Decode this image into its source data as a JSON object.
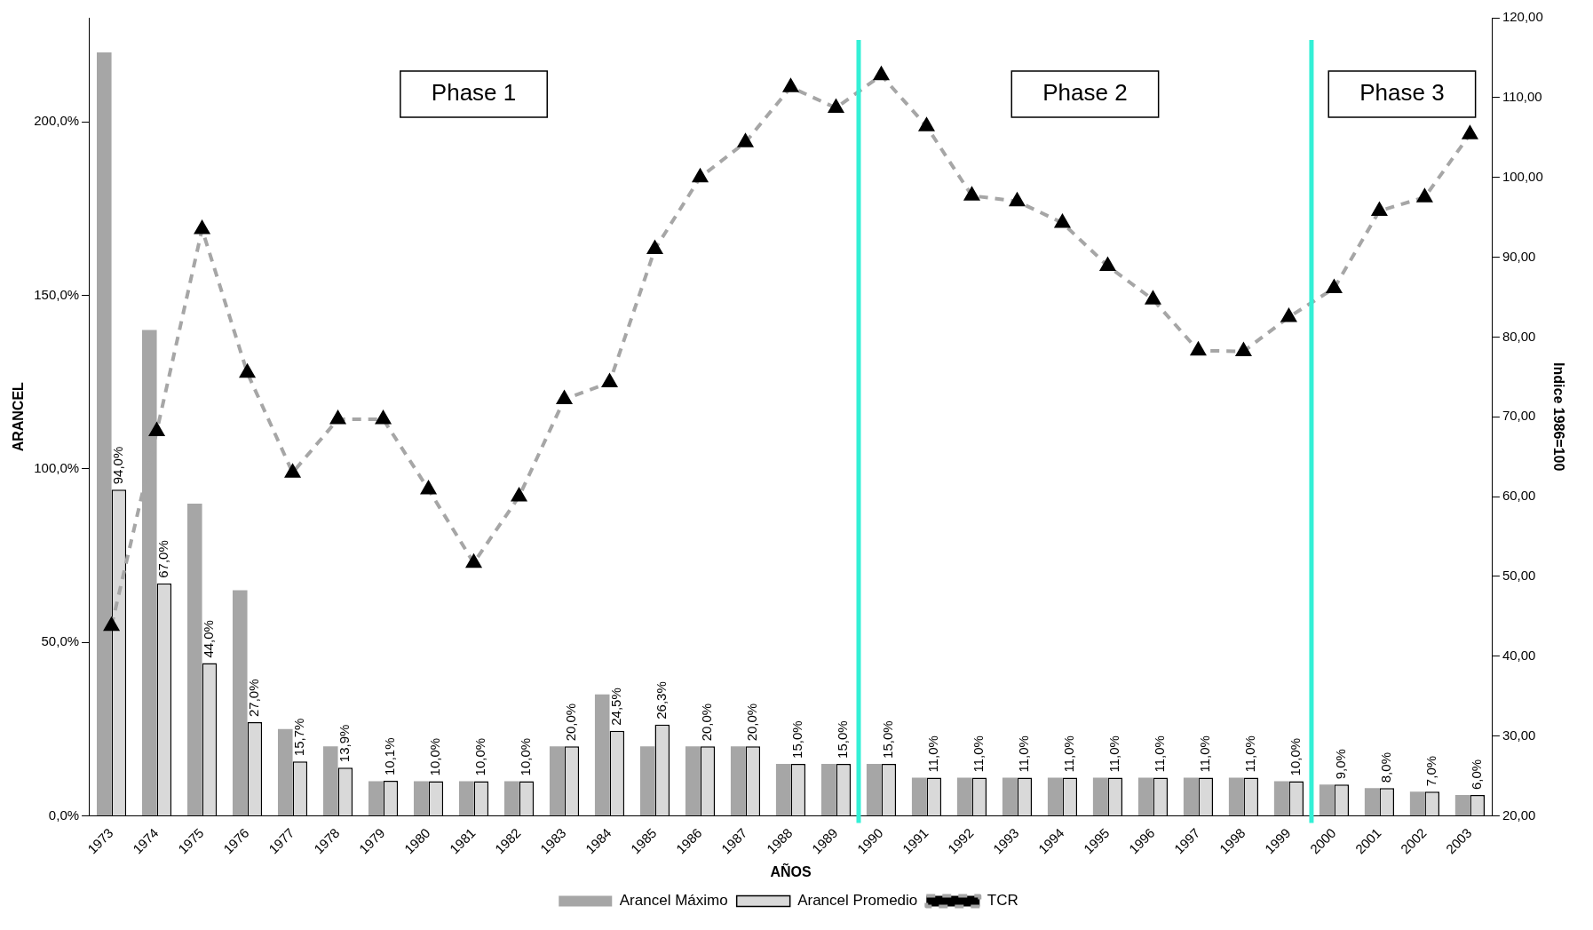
{
  "chart_data": {
    "type": "bar",
    "xlabel": "AÑOS",
    "ylabel": "ARANCEL",
    "y2label": "Indice 1986=100",
    "categories": [
      "1973",
      "1974",
      "1975",
      "1976",
      "1977",
      "1978",
      "1979",
      "1980",
      "1981",
      "1982",
      "1983",
      "1984",
      "1985",
      "1986",
      "1987",
      "1988",
      "1989",
      "1990",
      "1991",
      "1992",
      "1993",
      "1994",
      "1995",
      "1996",
      "1997",
      "1998",
      "1999",
      "2000",
      "2001",
      "2002",
      "2003"
    ],
    "series": [
      {
        "name": "Arancel Máximo",
        "color": "#a6a6a6",
        "values": [
          220,
          140,
          90,
          65,
          25,
          20,
          10,
          10,
          10,
          10,
          20,
          35,
          20,
          20,
          20,
          15,
          15,
          15,
          11,
          11,
          11,
          11,
          11,
          11,
          11,
          11,
          10,
          9,
          8,
          7,
          6
        ]
      },
      {
        "name": "Arancel Promedio",
        "color": "#d9d9d9",
        "values": [
          94,
          67,
          44,
          27,
          15.7,
          13.9,
          10.1,
          10,
          10,
          10,
          20,
          24.5,
          26.3,
          20,
          20,
          15,
          15,
          15,
          11,
          11,
          11,
          11,
          11,
          11,
          11,
          11,
          10,
          9,
          8,
          7,
          6
        ],
        "value_labels": [
          "94,0%",
          "67,0%",
          "44,0%",
          "27,0%",
          "15,7%",
          "13,9%",
          "10,1%",
          "10,0%",
          "10,0%",
          "10,0%",
          "20,0%",
          "24,5%",
          "26,3%",
          "20,0%",
          "20,0%",
          "15,0%",
          "15,0%",
          "15,0%",
          "11,0%",
          "11,0%",
          "11,0%",
          "11,0%",
          "11,0%",
          "11,0%",
          "11,0%",
          "11,0%",
          "10,0%",
          "9,0%",
          "8,0%",
          "7,0%",
          "6,0%"
        ]
      },
      {
        "name": "TCR",
        "type": "line",
        "axis": "y2",
        "color": "#a6a6a6",
        "line_style": "dashed",
        "marker": "triangle",
        "values": [
          43.8,
          68.2,
          93.5,
          75.5,
          63.0,
          69.7,
          69.7,
          60.9,
          51.7,
          60.0,
          72.2,
          74.3,
          91.0,
          100.0,
          104.4,
          111.3,
          108.7,
          112.8,
          106.4,
          97.7,
          97.0,
          94.3,
          88.9,
          84.7,
          78.3,
          78.2,
          82.5,
          86.1,
          95.8,
          97.5,
          105.4
        ]
      }
    ],
    "ylim": [
      0,
      230
    ],
    "yticks": [
      {
        "value": 0,
        "label": "0,0%"
      },
      {
        "value": 50,
        "label": "50,0%"
      },
      {
        "value": 100,
        "label": "100,0%"
      },
      {
        "value": 150,
        "label": "150,0%"
      },
      {
        "value": 200,
        "label": "200,0%"
      }
    ],
    "y2lim": [
      20,
      120
    ],
    "y2ticks": [
      {
        "value": 20,
        "label": "20,00"
      },
      {
        "value": 30,
        "label": "30,00"
      },
      {
        "value": 40,
        "label": "40,00"
      },
      {
        "value": 50,
        "label": "50,00"
      },
      {
        "value": 60,
        "label": "60,00"
      },
      {
        "value": 70,
        "label": "70,00"
      },
      {
        "value": 80,
        "label": "80,00"
      },
      {
        "value": 90,
        "label": "90,00"
      },
      {
        "value": 100,
        "label": "100,00"
      },
      {
        "value": 110,
        "label": "110,00"
      },
      {
        "value": 120,
        "label": "120,00"
      }
    ],
    "ref_lines": [
      {
        "axis": "x",
        "value": "1990",
        "color": "#33f0d6"
      },
      {
        "axis": "x",
        "value": "2000",
        "color": "#33f0d6"
      }
    ],
    "annotations": [
      "Phase 1",
      "Phase 2",
      "Phase 3"
    ],
    "grid": false,
    "legend": "bottom"
  }
}
